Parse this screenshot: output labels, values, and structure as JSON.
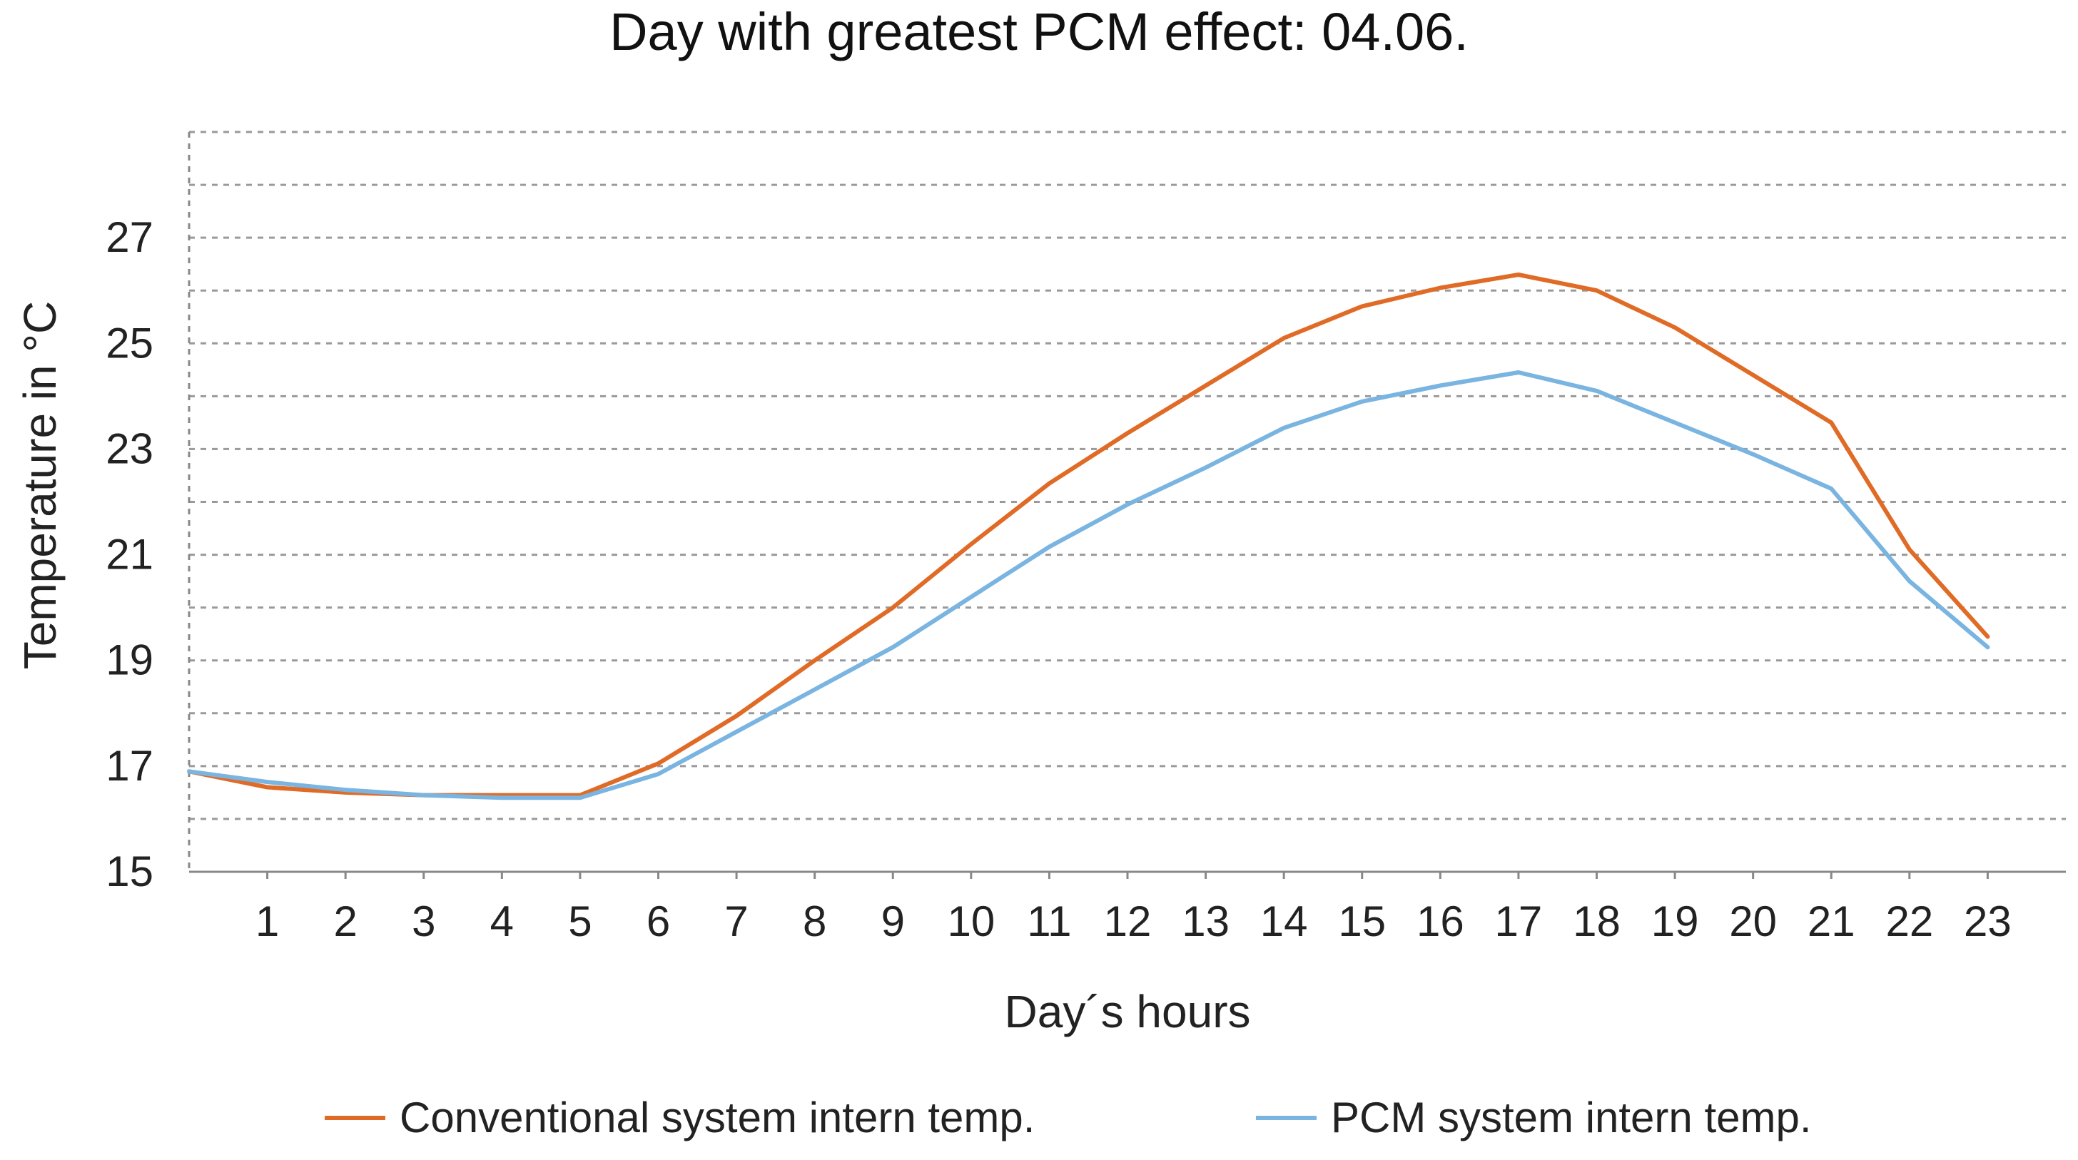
{
  "chart_data": {
    "type": "line",
    "title": "Day with greatest PCM effect: 04.06.",
    "xlabel": "Day´s hours",
    "ylabel": "Temperature in °C",
    "x": [
      0,
      1,
      2,
      3,
      4,
      5,
      6,
      7,
      8,
      9,
      10,
      11,
      12,
      13,
      14,
      15,
      16,
      17,
      18,
      19,
      20,
      21,
      22,
      23
    ],
    "x_tick_labels": [
      "1",
      "2",
      "3",
      "4",
      "5",
      "6",
      "7",
      "8",
      "9",
      "10",
      "11",
      "12",
      "13",
      "14",
      "15",
      "16",
      "17",
      "18",
      "19",
      "20",
      "21",
      "22",
      "23"
    ],
    "y_tick_labels": [
      "15",
      "17",
      "19",
      "21",
      "23",
      "25",
      "27"
    ],
    "ylim": [
      15,
      29
    ],
    "xlim": [
      0,
      24
    ],
    "grid": true,
    "legend_position": "bottom",
    "series": [
      {
        "name": "Conventional system intern temp.",
        "color": "#e06b26",
        "values": [
          16.9,
          16.6,
          16.5,
          16.45,
          16.45,
          16.45,
          17.05,
          17.95,
          19.0,
          20.0,
          21.2,
          22.35,
          23.3,
          24.2,
          25.1,
          25.7,
          26.05,
          26.3,
          26.0,
          25.3,
          24.4,
          23.5,
          21.1,
          19.45
        ]
      },
      {
        "name": "PCM system intern temp.",
        "color": "#7ab4e0",
        "values": [
          16.9,
          16.7,
          16.55,
          16.45,
          16.4,
          16.4,
          16.85,
          17.65,
          18.45,
          19.25,
          20.2,
          21.15,
          21.95,
          22.65,
          23.4,
          23.9,
          24.2,
          24.45,
          24.1,
          23.5,
          22.9,
          22.25,
          20.5,
          19.25
        ]
      }
    ]
  }
}
